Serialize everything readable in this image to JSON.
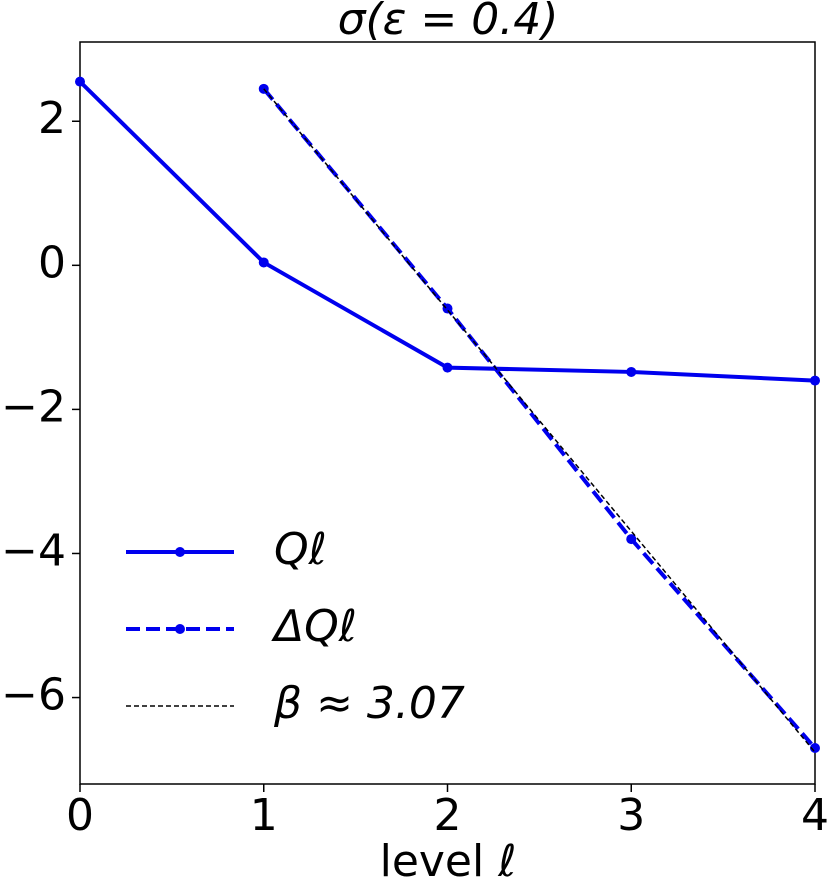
{
  "chart_data": {
    "type": "line",
    "title": "σ(ε = 0.4)",
    "x_label": "level ℓ",
    "x": [
      0,
      1,
      2,
      3,
      4
    ],
    "series": [
      {
        "name": "Qℓ",
        "color": "#0000ee",
        "style": "solid",
        "marker": true,
        "values": [
          2.55,
          0.04,
          -1.42,
          -1.48,
          -1.6
        ]
      },
      {
        "name": "ΔQℓ",
        "color": "#0000ee",
        "style": "dashed",
        "marker": true,
        "values": [
          null,
          2.45,
          -0.6,
          -3.8,
          -6.7
        ]
      },
      {
        "name": "β ≈ 3.07",
        "color": "#000000",
        "style": "dotted",
        "marker": false,
        "values": [
          null,
          2.45,
          -0.62,
          -3.69,
          -6.76
        ]
      }
    ],
    "xlim": [
      0,
      4
    ],
    "ylim": [
      -7.2,
      3.1
    ],
    "xticks": [
      0,
      1,
      2,
      3,
      4
    ],
    "yticks": [
      {
        "value": -6,
        "label": "−6"
      },
      {
        "value": -4,
        "label": "−4"
      },
      {
        "value": -2,
        "label": "−2"
      },
      0,
      2
    ],
    "legend": "lower left"
  }
}
